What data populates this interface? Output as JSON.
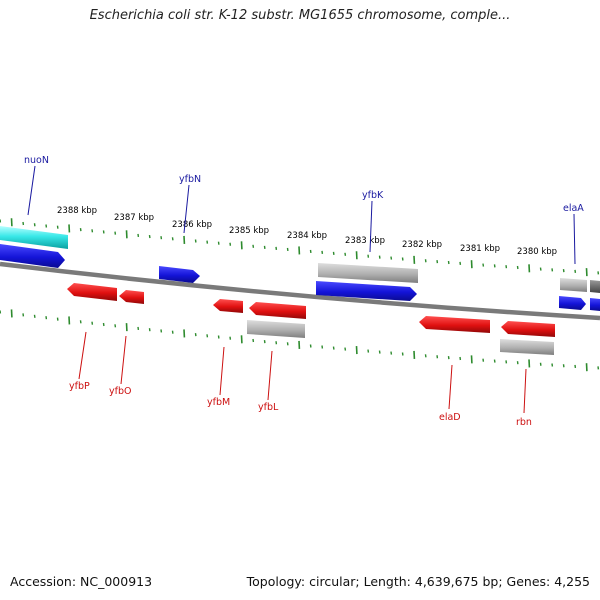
{
  "title": "Escherichia coli str. K-12 substr. MG1655 chromosome, comple...",
  "footer": {
    "accession": "Accession: NC_000913",
    "topology": "Topology: circular; Length: 4,639,675 bp; Genes: 4,255"
  },
  "colors": {
    "backbone": "#808080",
    "ticks": "#2e8b2e",
    "forward_gene": "#1a1adc",
    "reverse_gene": "#e01010",
    "other_feature": "#b4b4b4",
    "highlight_gene": "#30e0e0",
    "forward_label": "#1a1aa0",
    "reverse_label": "#cc1010"
  },
  "kbp_labels": [
    "2388 kbp",
    "2387 kbp",
    "2386 kbp",
    "2385 kbp",
    "2384 kbp",
    "2383 kbp",
    "2382 kbp",
    "2381 kbp",
    "2380 kbp"
  ],
  "gene_labels": {
    "top": [
      "nuoN",
      "yfbN",
      "yfbK",
      "elaA"
    ],
    "bottom": [
      "yfbP",
      "yfbO",
      "yfbM",
      "yfbL",
      "elaD",
      "rbn"
    ]
  }
}
